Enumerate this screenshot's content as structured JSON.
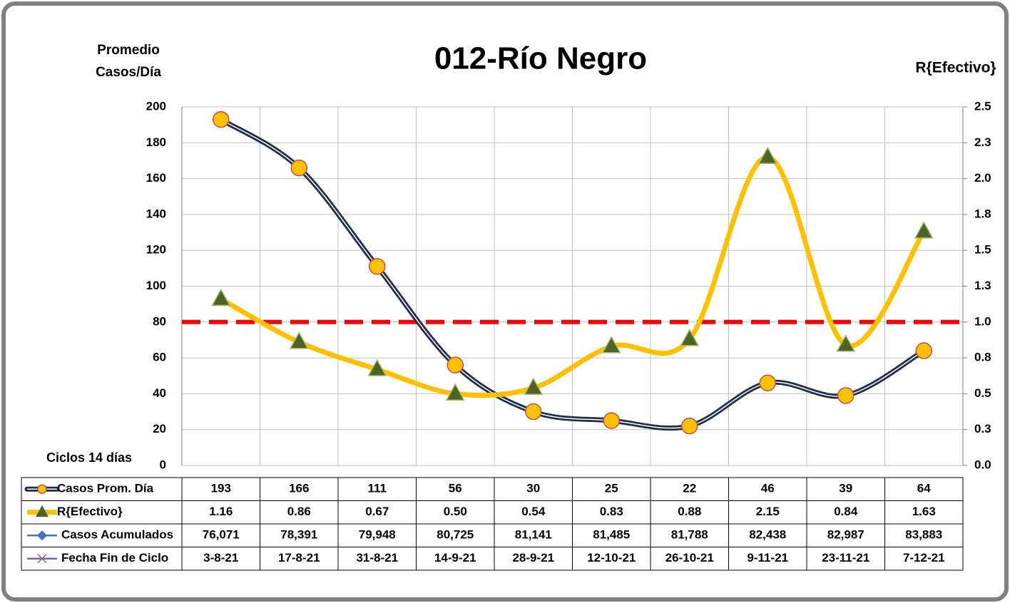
{
  "chart_data": {
    "type": "line",
    "title": "012-Río Negro",
    "ylabel": [
      "Promedio",
      "Casos/Día"
    ],
    "y2label": "R{Efectivo}",
    "xlabel": "Ciclos 14 días",
    "category_name": "Fecha Fin de Ciclo",
    "category_color": "#8064a2",
    "categories": [
      "3-8-21",
      "17-8-21",
      "31-8-21",
      "14-9-21",
      "28-9-21",
      "12-10-21",
      "26-10-21",
      "9-11-21",
      "23-11-21",
      "7-12-21"
    ],
    "ylim": [
      0,
      200
    ],
    "yticks": [
      0,
      20,
      40,
      60,
      80,
      100,
      120,
      140,
      160,
      180,
      200
    ],
    "y2lim": [
      0,
      2.5
    ],
    "y2ticks": [
      {
        "value": 0,
        "label": "0.0"
      },
      {
        "value": 0.25,
        "label": "0.3"
      },
      0.5,
      {
        "value": 0.75,
        "label": "0.8"
      },
      {
        "value": 1,
        "label": "1.0"
      },
      {
        "value": 1.25,
        "label": "1.3"
      },
      1.5,
      {
        "value": 1.75,
        "label": "1.8"
      },
      {
        "value": 2,
        "label": "2.0"
      },
      {
        "value": 2.25,
        "label": "2.3"
      },
      2.5
    ],
    "grid": true,
    "smooth": true,
    "series": [
      {
        "name": "Casos Prom. Día",
        "color": "#1f2d4a",
        "marker": "circle",
        "marker_color": "#ffc000",
        "axis": "y",
        "values": [
          193,
          166,
          111,
          56,
          30,
          25,
          22,
          46,
          39,
          64
        ]
      },
      {
        "name": "R{Efectivo}",
        "color": "#ffc000",
        "marker": "triangle",
        "marker_color": "#4f6228",
        "axis": "y2",
        "values": [
          1.16,
          0.86,
          0.67,
          0.5,
          0.54,
          0.83,
          0.88,
          2.15,
          0.84,
          1.63
        ],
        "value_labels": [
          "1.16",
          "0.86",
          "0.67",
          "0.50",
          "0.54",
          "0.83",
          "0.88",
          "2.15",
          "0.84",
          "1.63"
        ]
      },
      {
        "name": "Casos Acumulados",
        "color": "#4472c4",
        "marker": "diamond",
        "marker_color": "#4472c4",
        "axis": "y",
        "plotted": false,
        "values": [
          76071,
          78391,
          79948,
          80725,
          81141,
          81485,
          81788,
          82438,
          82987,
          83883
        ],
        "value_labels": [
          "76,071",
          "78,391",
          "79,948",
          "80,725",
          "81,141",
          "81,485",
          "81,788",
          "82,438",
          "82,987",
          "83,883"
        ]
      }
    ],
    "reference_line": {
      "value": 1,
      "axis": "y2",
      "color": "#ff0000"
    }
  }
}
